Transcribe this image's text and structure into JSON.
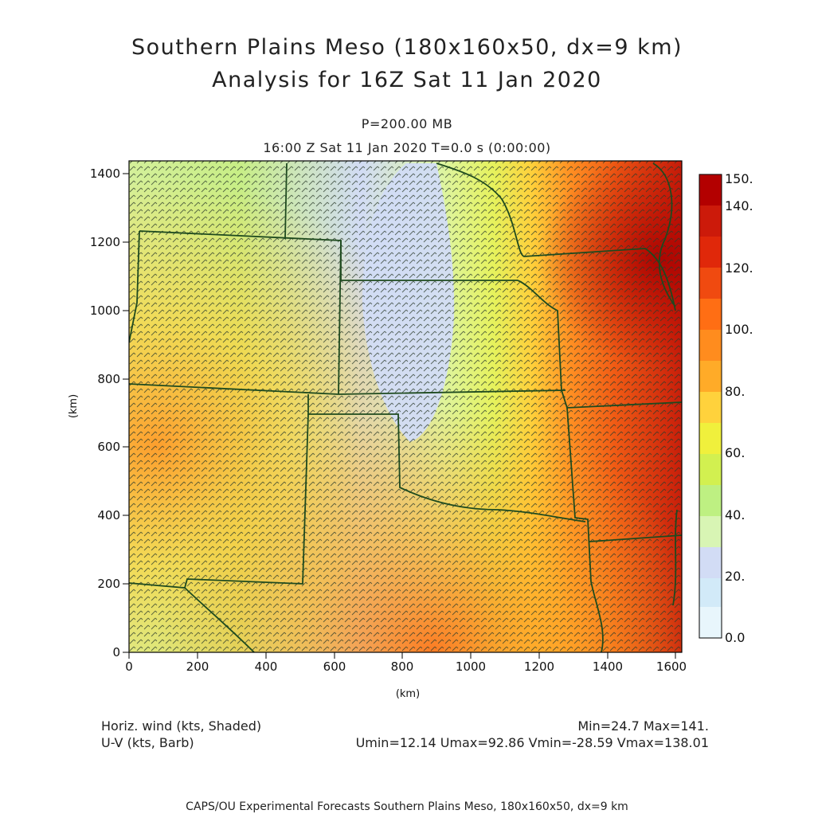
{
  "title_line1": "Southern Plains Meso (180x160x50, dx=9 km)",
  "title_line2": "Analysis for 16Z Sat 11 Jan 2020",
  "level": "P=200.00 MB",
  "valid_time": "16:00 Z Sat 11 Jan 2020    T=0.0 s (0:00:00)",
  "axes": {
    "x_label": "(km)",
    "y_label": "(km)",
    "x_ticks": [
      "0",
      "200",
      "400",
      "600",
      "800",
      "1000",
      "1200",
      "1400",
      "1600"
    ],
    "y_ticks": [
      "0",
      "200",
      "400",
      "600",
      "800",
      "1000",
      "1200",
      "1400"
    ],
    "x_range": [
      0,
      1620
    ],
    "y_range": [
      0,
      1440
    ]
  },
  "colorbar": {
    "labels": [
      "150.",
      "140.",
      "120.",
      "100.",
      "80.",
      "60.",
      "40.",
      "20.",
      "0.0"
    ],
    "colors": [
      "#b30000",
      "#cc1a0a",
      "#e0280a",
      "#f04a10",
      "#ff6e14",
      "#ff8c1e",
      "#ffab28",
      "#ffd23c",
      "#f0f03c",
      "#d2f050",
      "#bef082",
      "#d8f5b4",
      "#d2dcf5",
      "#d2eaf8",
      "#e8f6fc"
    ]
  },
  "legend": {
    "shaded": "Horiz. wind (kts, Shaded)",
    "barb": "U-V (kts, Barb)",
    "minmax": "Min=24.7 Max=141.",
    "uv_stats": "Umin=12.14 Umax=92.86 Vmin=-28.59 Vmax=138.01"
  },
  "credit": "CAPS/OU Experimental Forecasts  Southern Plains Meso, 180x160x50, dx=9 km"
}
